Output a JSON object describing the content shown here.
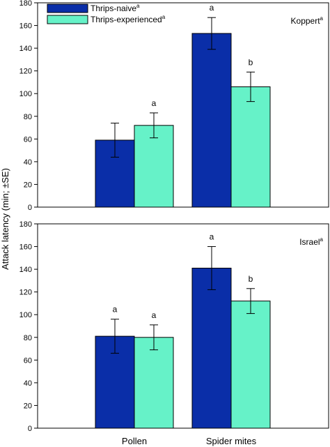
{
  "chart_data": {
    "type": "bar",
    "ylabel": "Attack latency (min; ±SE)",
    "categories": [
      "Pollen",
      "Spider mites"
    ],
    "ylim": [
      0,
      180
    ],
    "yticks": [
      0,
      20,
      40,
      60,
      80,
      100,
      120,
      140,
      160,
      180
    ],
    "legend": {
      "placement": "top-left",
      "entries": [
        {
          "name": "Thrips-naive",
          "sup": "a",
          "color": "#0a2ea8"
        },
        {
          "name": "Thrips-experienced",
          "sup": "a",
          "color": "#66f2c8"
        }
      ]
    },
    "panels": [
      {
        "label": "Koppert",
        "label_sup": "a",
        "series": [
          {
            "name": "Thrips-naive",
            "values": [
              59,
              153
            ],
            "errors": [
              15,
              14
            ],
            "sig": [
              "",
              "a"
            ]
          },
          {
            "name": "Thrips-experienced",
            "values": [
              72,
              106
            ],
            "errors": [
              11,
              13
            ],
            "sig": [
              "a",
              "b"
            ]
          }
        ]
      },
      {
        "label": "Israel",
        "label_sup": "a",
        "series": [
          {
            "name": "Thrips-naive",
            "values": [
              81,
              141
            ],
            "errors": [
              15,
              19
            ],
            "sig": [
              "a",
              "a"
            ]
          },
          {
            "name": "Thrips-experienced",
            "values": [
              80,
              112
            ],
            "errors": [
              11,
              11
            ],
            "sig": [
              "a",
              "b"
            ]
          }
        ]
      }
    ]
  }
}
